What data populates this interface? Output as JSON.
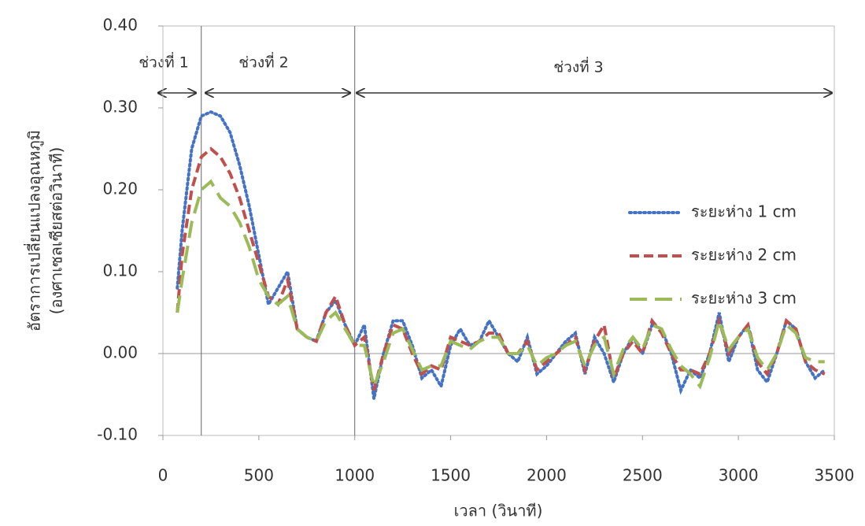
{
  "chart_data": {
    "type": "line",
    "x_label": "เวลา (วินาที)",
    "y_label": [
      "อัตราการเปลี่ยนแปลงอุณหภูมิ",
      "(องศาเซลเซียสต่อวินาที)"
    ],
    "annotations": [
      "ช่วงที่ 1",
      "ช่วงที่ 2",
      "ช่วงที่ 3"
    ],
    "vlines": [
      200,
      1000
    ],
    "x": [
      75,
      100,
      150,
      200,
      250,
      300,
      350,
      400,
      450,
      500,
      550,
      600,
      650,
      700,
      750,
      800,
      850,
      900,
      950,
      1000,
      1050,
      1100,
      1150,
      1200,
      1250,
      1300,
      1350,
      1400,
      1450,
      1500,
      1550,
      1600,
      1650,
      1700,
      1750,
      1800,
      1850,
      1900,
      1950,
      2000,
      2050,
      2100,
      2150,
      2200,
      2250,
      2300,
      2350,
      2400,
      2450,
      2500,
      2550,
      2600,
      2650,
      2700,
      2750,
      2800,
      2850,
      2900,
      2950,
      3000,
      3050,
      3100,
      3150,
      3200,
      3250,
      3300,
      3350,
      3400,
      3450
    ],
    "series": [
      {
        "name": "ระยะห่าง 1 cm",
        "color": "#4472c4",
        "dash": "2 4",
        "values": [
          0.08,
          0.15,
          0.25,
          0.29,
          0.295,
          0.29,
          0.27,
          0.23,
          0.18,
          0.12,
          0.06,
          0.08,
          0.1,
          0.03,
          0.02,
          0.015,
          0.05,
          0.065,
          0.035,
          0.01,
          0.035,
          -0.055,
          0.0,
          0.04,
          0.04,
          0.01,
          -0.03,
          -0.02,
          -0.04,
          0.01,
          0.03,
          0.01,
          0.015,
          0.04,
          0.02,
          0.0,
          -0.01,
          0.02,
          -0.025,
          -0.015,
          0.0,
          0.015,
          0.025,
          -0.025,
          0.02,
          0.0,
          -0.035,
          0.0,
          0.02,
          0.0,
          0.035,
          0.03,
          0.0,
          -0.045,
          -0.02,
          -0.03,
          0.0,
          0.05,
          -0.01,
          0.02,
          0.035,
          -0.02,
          -0.035,
          0.0,
          0.04,
          0.03,
          -0.01,
          -0.03,
          -0.02
        ]
      },
      {
        "name": "ระยะห่าง 2 cm",
        "color": "#c0504d",
        "dash": "12 6",
        "values": [
          0.05,
          0.12,
          0.2,
          0.24,
          0.25,
          0.24,
          0.22,
          0.19,
          0.15,
          0.11,
          0.07,
          0.06,
          0.09,
          0.03,
          0.02,
          0.015,
          0.05,
          0.07,
          0.035,
          0.01,
          0.02,
          -0.045,
          0.0,
          0.035,
          0.03,
          0.0,
          -0.025,
          -0.015,
          -0.02,
          0.02,
          0.015,
          0.01,
          0.015,
          0.025,
          0.025,
          0.0,
          0.0,
          0.015,
          -0.02,
          -0.01,
          0.0,
          0.01,
          0.02,
          -0.02,
          0.015,
          0.035,
          -0.03,
          0.0,
          0.015,
          0.0,
          0.04,
          0.025,
          0.0,
          -0.02,
          -0.02,
          -0.025,
          0.0,
          0.04,
          0.0,
          0.02,
          0.035,
          -0.01,
          -0.025,
          0.0,
          0.04,
          0.03,
          -0.01,
          -0.02,
          -0.025
        ]
      },
      {
        "name": "ระยะห่าง 3 cm",
        "color": "#9bbb59",
        "dash": "22 10",
        "values": [
          0.05,
          0.09,
          0.16,
          0.2,
          0.21,
          0.19,
          0.18,
          0.16,
          0.13,
          0.09,
          0.07,
          0.06,
          0.07,
          0.03,
          0.02,
          0.015,
          0.04,
          0.05,
          0.03,
          0.01,
          0.01,
          -0.04,
          -0.01,
          0.025,
          0.03,
          0.005,
          -0.02,
          -0.015,
          -0.015,
          0.015,
          0.01,
          0.005,
          0.015,
          0.02,
          0.02,
          0.0,
          0.0,
          0.01,
          -0.015,
          -0.005,
          0.0,
          0.01,
          0.015,
          -0.015,
          0.01,
          0.02,
          -0.025,
          0.005,
          0.02,
          0.005,
          0.035,
          0.03,
          0.005,
          -0.015,
          -0.025,
          -0.04,
          -0.005,
          0.04,
          0.005,
          0.02,
          0.03,
          -0.005,
          -0.02,
          0.0,
          0.035,
          0.025,
          -0.005,
          -0.01,
          -0.01
        ]
      }
    ],
    "xlim": [
      0,
      3500
    ],
    "xticks": [
      0,
      500,
      1000,
      1500,
      2000,
      2500,
      3000,
      3500
    ],
    "ylim": [
      -0.1,
      0.4
    ],
    "yticks": [
      {
        "value": -0.1,
        "label": "-0.10"
      },
      {
        "value": 0,
        "label": "0.00"
      },
      {
        "value": 0.1,
        "label": "0.10"
      },
      {
        "value": 0.2,
        "label": "0.20"
      },
      {
        "value": 0.3,
        "label": "0.30"
      },
      {
        "value": 0.4,
        "label": "0.40"
      }
    ],
    "grid": false,
    "legend": "right"
  }
}
